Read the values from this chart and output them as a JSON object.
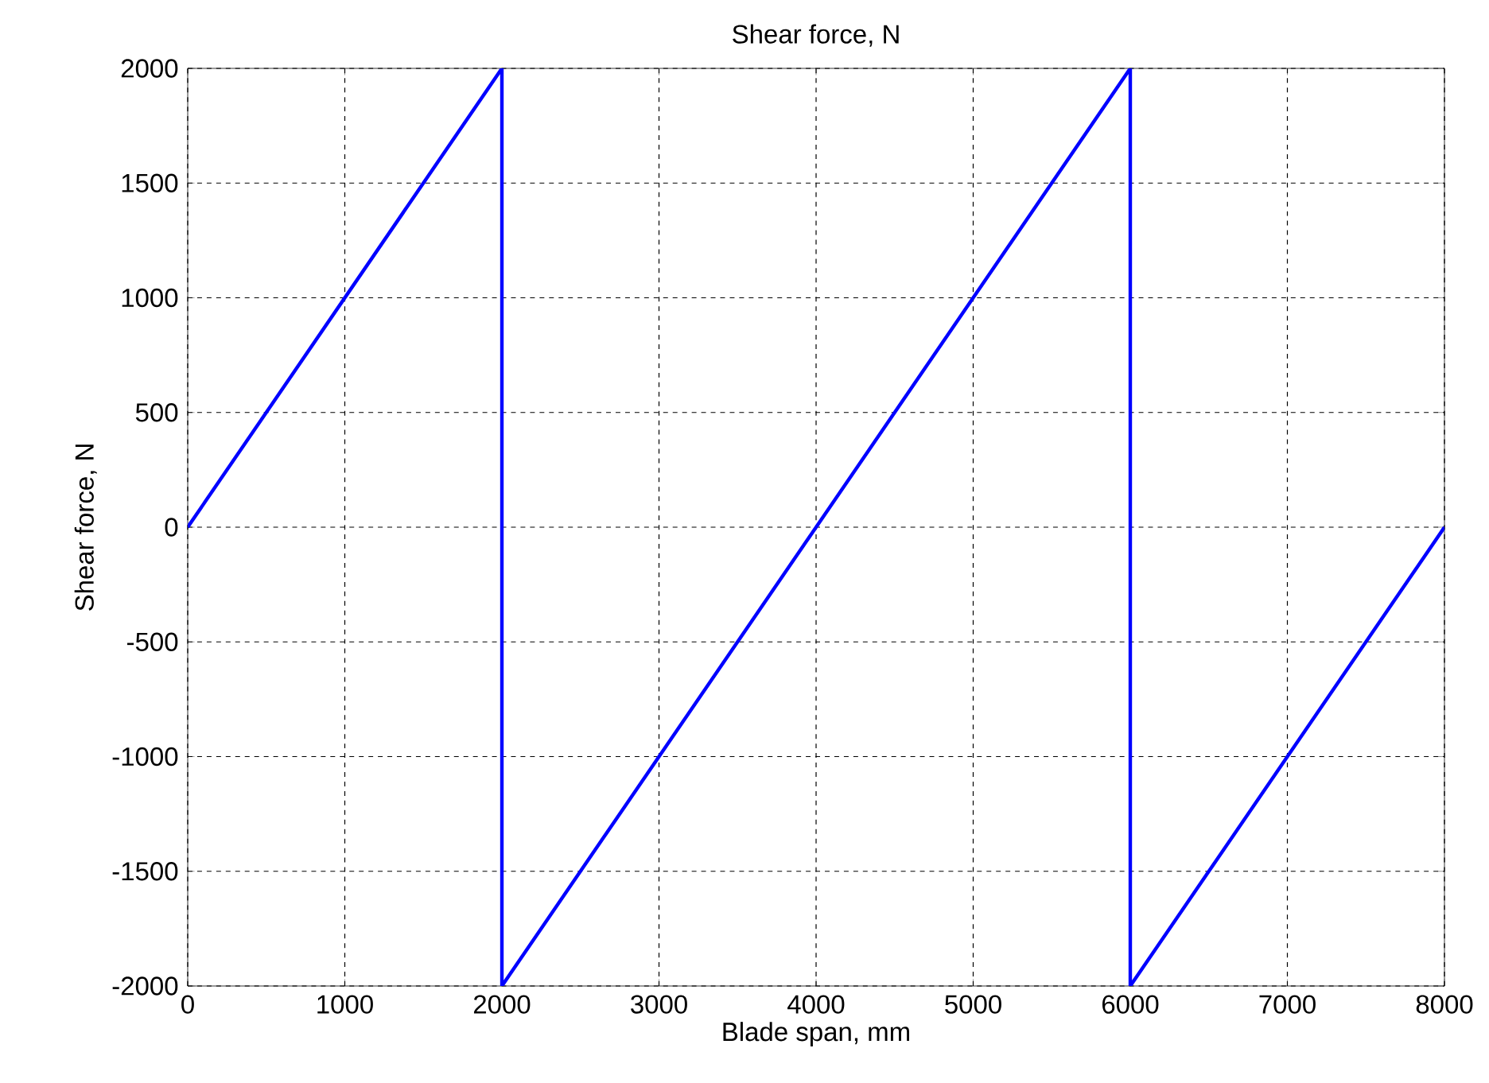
{
  "chart_data": {
    "type": "line",
    "title": "Shear force, N",
    "xlabel": "Blade span, mm",
    "ylabel": "Shear force, N",
    "series": [
      {
        "color": "#0000ff",
        "x": [
          0,
          2000,
          2000,
          6000,
          6000,
          8000
        ],
        "values": [
          0,
          2000,
          -2000,
          2000,
          -2000,
          0
        ]
      }
    ],
    "xlim": [
      0,
      8000
    ],
    "xticks": [
      0,
      1000,
      2000,
      3000,
      4000,
      5000,
      6000,
      7000,
      8000
    ],
    "ylim": [
      -2000,
      2000
    ],
    "yticks": [
      -2000,
      -1500,
      -1000,
      -500,
      0,
      500,
      1000,
      1500,
      2000
    ],
    "grid": true
  }
}
